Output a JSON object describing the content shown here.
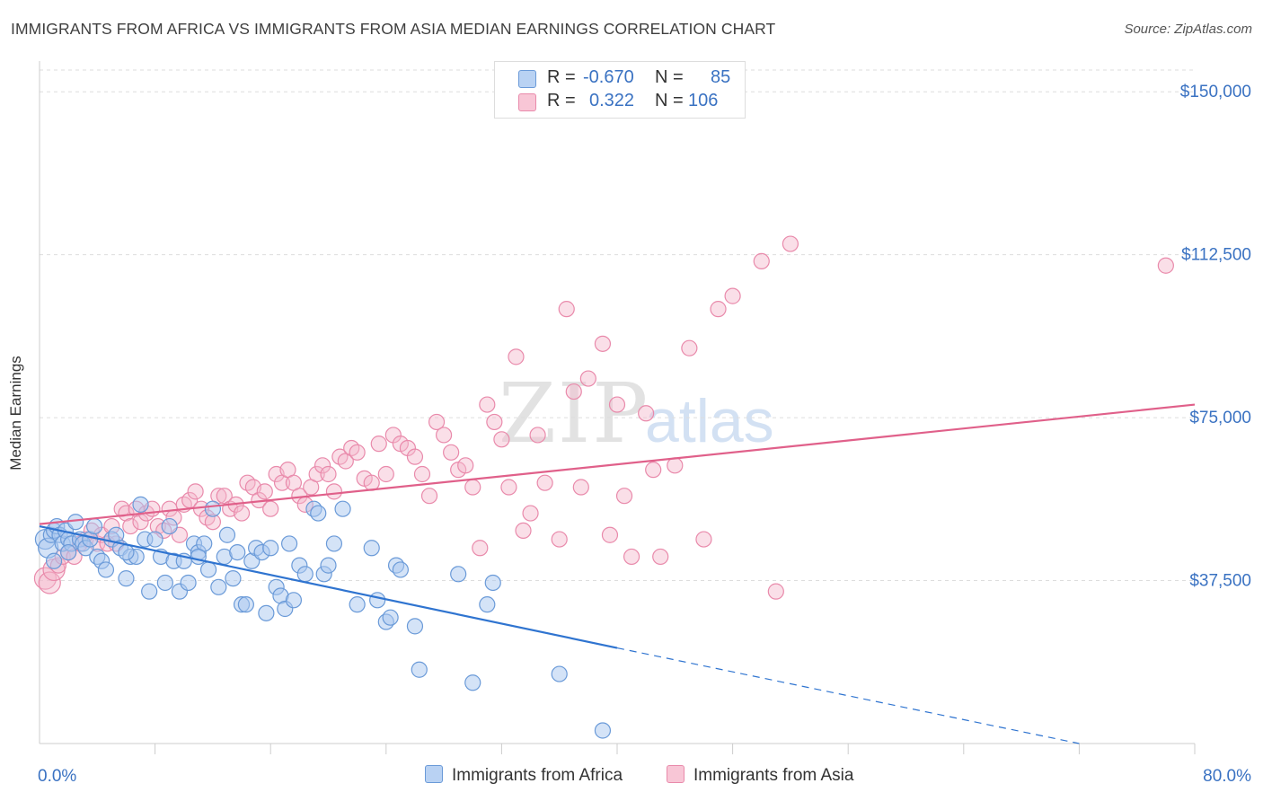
{
  "title": "IMMIGRANTS FROM AFRICA VS IMMIGRANTS FROM ASIA MEDIAN EARNINGS CORRELATION CHART",
  "source": "Source: ZipAtlas.com",
  "watermark": {
    "zip": "ZIP",
    "atlas": "atlas"
  },
  "legend": {
    "africa": {
      "r_label": "R =",
      "r_value": "-0.670",
      "n_label": "N =",
      "n_value": "85"
    },
    "asia": {
      "r_label": "R =",
      "r_value": "0.322",
      "n_label": "N =",
      "n_value": "106"
    }
  },
  "colors": {
    "africa_fill": "#a9c8f0",
    "africa_stroke": "#6a9ad8",
    "africa_line": "#2f74d0",
    "asia_fill": "#f5b8cc",
    "asia_stroke": "#e98aab",
    "asia_line": "#e0608a",
    "axis_text": "#3a72c2",
    "grid": "#dddddd"
  },
  "chart_data": {
    "type": "scatter",
    "title": "IMMIGRANTS FROM AFRICA VS IMMIGRANTS FROM ASIA MEDIAN EARNINGS CORRELATION CHART",
    "xlabel": "",
    "ylabel": "Median Earnings",
    "xlim": [
      0,
      80
    ],
    "ylim": [
      0,
      155000
    ],
    "x_tick_labels": [
      "0.0%",
      "80.0%"
    ],
    "y_ticks": [
      37500,
      75000,
      112500,
      150000
    ],
    "y_tick_labels": [
      "$37,500",
      "$75,000",
      "$112,500",
      "$150,000"
    ],
    "grid": "horizontal dashed",
    "legend_position": "top-center",
    "series": [
      {
        "name": "Immigrants from Africa",
        "trend": {
          "x0": 0,
          "y0": 50000,
          "x1": 40,
          "y1": 22000,
          "dash_to_x": 72,
          "dash_to_y": 0
        },
        "points": [
          [
            0.4,
            47000
          ],
          [
            0.6,
            45000
          ],
          [
            0.8,
            48000
          ],
          [
            1.0,
            49000
          ],
          [
            1.2,
            50000
          ],
          [
            1.4,
            48000
          ],
          [
            1.6,
            46000
          ],
          [
            1.8,
            49000
          ],
          [
            2.0,
            47000
          ],
          [
            2.2,
            46000
          ],
          [
            2.5,
            51000
          ],
          [
            2.8,
            47000
          ],
          [
            3.0,
            46000
          ],
          [
            3.2,
            45000
          ],
          [
            3.5,
            47000
          ],
          [
            3.8,
            50000
          ],
          [
            4.0,
            43000
          ],
          [
            4.3,
            42000
          ],
          [
            4.6,
            40000
          ],
          [
            5.0,
            47000
          ],
          [
            5.3,
            48000
          ],
          [
            5.6,
            45000
          ],
          [
            6.0,
            38000
          ],
          [
            6.3,
            43000
          ],
          [
            6.7,
            43000
          ],
          [
            7.0,
            55000
          ],
          [
            7.3,
            47000
          ],
          [
            7.6,
            35000
          ],
          [
            8.0,
            47000
          ],
          [
            8.4,
            43000
          ],
          [
            8.7,
            37000
          ],
          [
            9.0,
            50000
          ],
          [
            9.3,
            42000
          ],
          [
            9.7,
            35000
          ],
          [
            10.0,
            42000
          ],
          [
            10.3,
            37000
          ],
          [
            10.7,
            46000
          ],
          [
            11.0,
            44000
          ],
          [
            11.4,
            46000
          ],
          [
            11.7,
            40000
          ],
          [
            12.0,
            54000
          ],
          [
            12.4,
            36000
          ],
          [
            12.8,
            43000
          ],
          [
            13.0,
            48000
          ],
          [
            13.4,
            38000
          ],
          [
            13.7,
            44000
          ],
          [
            14.0,
            32000
          ],
          [
            14.3,
            32000
          ],
          [
            14.7,
            42000
          ],
          [
            15.0,
            45000
          ],
          [
            15.4,
            44000
          ],
          [
            15.7,
            30000
          ],
          [
            16.0,
            45000
          ],
          [
            16.4,
            36000
          ],
          [
            16.7,
            34000
          ],
          [
            17.0,
            31000
          ],
          [
            17.3,
            46000
          ],
          [
            17.6,
            33000
          ],
          [
            18.0,
            41000
          ],
          [
            18.4,
            39000
          ],
          [
            19.0,
            54000
          ],
          [
            19.3,
            53000
          ],
          [
            19.7,
            39000
          ],
          [
            20.0,
            41000
          ],
          [
            20.4,
            46000
          ],
          [
            21.0,
            54000
          ],
          [
            22.0,
            32000
          ],
          [
            23.0,
            45000
          ],
          [
            23.4,
            33000
          ],
          [
            24.0,
            28000
          ],
          [
            24.3,
            29000
          ],
          [
            24.7,
            41000
          ],
          [
            25.0,
            40000
          ],
          [
            26.0,
            27000
          ],
          [
            26.3,
            17000
          ],
          [
            29.0,
            39000
          ],
          [
            30.0,
            14000
          ],
          [
            31.0,
            32000
          ],
          [
            31.4,
            37000
          ],
          [
            36.0,
            16000
          ],
          [
            39.0,
            3000
          ],
          [
            1.0,
            42000
          ],
          [
            2.0,
            44000
          ],
          [
            6.0,
            44000
          ],
          [
            11.0,
            43000
          ]
        ]
      },
      {
        "name": "Immigrants from Asia",
        "trend": {
          "x0": 0,
          "y0": 50500,
          "x1": 80,
          "y1": 78000
        },
        "points": [
          [
            0.4,
            38000
          ],
          [
            0.7,
            37000
          ],
          [
            1.0,
            40000
          ],
          [
            1.3,
            41000
          ],
          [
            1.6,
            43000
          ],
          [
            2.0,
            44000
          ],
          [
            2.4,
            43000
          ],
          [
            2.8,
            46000
          ],
          [
            3.2,
            47000
          ],
          [
            3.6,
            49000
          ],
          [
            4.0,
            46000
          ],
          [
            4.3,
            48000
          ],
          [
            4.7,
            46000
          ],
          [
            5.0,
            50000
          ],
          [
            5.3,
            46000
          ],
          [
            5.7,
            54000
          ],
          [
            6.0,
            53000
          ],
          [
            6.3,
            50000
          ],
          [
            6.7,
            54000
          ],
          [
            7.0,
            51000
          ],
          [
            7.4,
            53000
          ],
          [
            7.8,
            54000
          ],
          [
            8.2,
            50000
          ],
          [
            8.6,
            49000
          ],
          [
            9.0,
            54000
          ],
          [
            9.3,
            52000
          ],
          [
            9.7,
            48000
          ],
          [
            10.0,
            55000
          ],
          [
            10.4,
            56000
          ],
          [
            10.8,
            58000
          ],
          [
            11.2,
            54000
          ],
          [
            11.6,
            52000
          ],
          [
            12.0,
            51000
          ],
          [
            12.4,
            57000
          ],
          [
            12.8,
            57000
          ],
          [
            13.2,
            54000
          ],
          [
            13.6,
            55000
          ],
          [
            14.0,
            53000
          ],
          [
            14.4,
            60000
          ],
          [
            14.8,
            59000
          ],
          [
            15.2,
            56000
          ],
          [
            15.6,
            58000
          ],
          [
            16.0,
            54000
          ],
          [
            16.4,
            62000
          ],
          [
            16.8,
            60000
          ],
          [
            17.2,
            63000
          ],
          [
            17.6,
            60000
          ],
          [
            18.0,
            57000
          ],
          [
            18.4,
            55000
          ],
          [
            18.8,
            59000
          ],
          [
            19.2,
            62000
          ],
          [
            19.6,
            64000
          ],
          [
            20.0,
            62000
          ],
          [
            20.4,
            58000
          ],
          [
            20.8,
            66000
          ],
          [
            21.2,
            65000
          ],
          [
            21.6,
            68000
          ],
          [
            22.0,
            67000
          ],
          [
            22.5,
            61000
          ],
          [
            23.0,
            60000
          ],
          [
            23.5,
            69000
          ],
          [
            24.0,
            62000
          ],
          [
            24.5,
            71000
          ],
          [
            25.0,
            69000
          ],
          [
            25.5,
            68000
          ],
          [
            26.0,
            66000
          ],
          [
            26.5,
            62000
          ],
          [
            27.0,
            57000
          ],
          [
            27.5,
            74000
          ],
          [
            28.0,
            71000
          ],
          [
            28.5,
            67000
          ],
          [
            29.0,
            63000
          ],
          [
            29.5,
            64000
          ],
          [
            30.0,
            59000
          ],
          [
            30.5,
            45000
          ],
          [
            31.0,
            78000
          ],
          [
            31.5,
            74000
          ],
          [
            32.0,
            70000
          ],
          [
            32.5,
            59000
          ],
          [
            33.0,
            89000
          ],
          [
            33.5,
            49000
          ],
          [
            34.0,
            53000
          ],
          [
            34.5,
            71000
          ],
          [
            35.0,
            60000
          ],
          [
            36.0,
            47000
          ],
          [
            36.5,
            100000
          ],
          [
            37.0,
            81000
          ],
          [
            37.5,
            59000
          ],
          [
            38.0,
            84000
          ],
          [
            39.0,
            92000
          ],
          [
            39.5,
            48000
          ],
          [
            40.0,
            78000
          ],
          [
            40.5,
            57000
          ],
          [
            41.0,
            43000
          ],
          [
            42.0,
            76000
          ],
          [
            42.5,
            63000
          ],
          [
            43.0,
            43000
          ],
          [
            44.0,
            64000
          ],
          [
            45.0,
            91000
          ],
          [
            46.0,
            47000
          ],
          [
            47.0,
            100000
          ],
          [
            48.0,
            103000
          ],
          [
            50.0,
            111000
          ],
          [
            51.0,
            35000
          ],
          [
            52.0,
            115000
          ],
          [
            78.0,
            110000
          ]
        ]
      }
    ]
  },
  "bottom_legend": {
    "africa": "Immigrants from Africa",
    "asia": "Immigrants from Asia"
  }
}
